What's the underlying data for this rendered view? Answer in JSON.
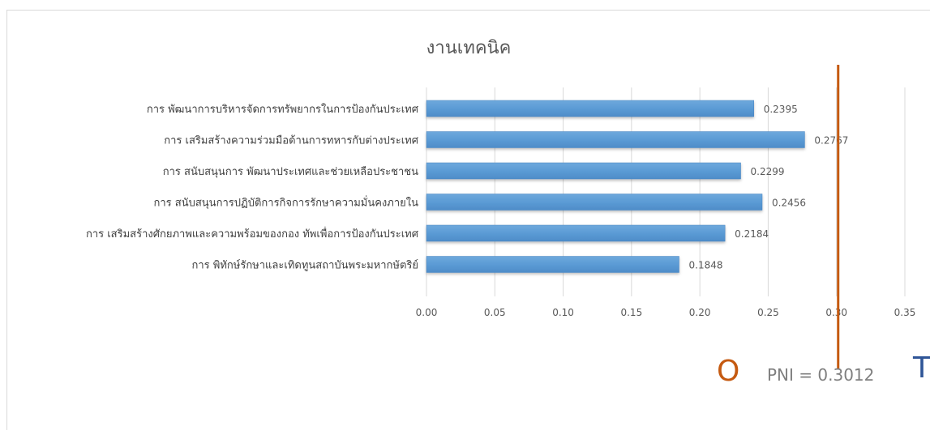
{
  "colors": {
    "bar": "#5b9bd5",
    "bar_edge": "#4a86c2",
    "gridline": "#d9d9d9",
    "threshold": "#c55a11",
    "label_o": "#c55a11",
    "label_t": "#2f5597"
  },
  "chart_data": {
    "type": "bar",
    "orientation": "horizontal",
    "title": "งานเทคนิค",
    "categories": [
      "การ พัฒนาการบริหารจัดการทรัพยากรในการป้องกันประเทศ",
      "การ เสริมสร้างความร่วมมือด้านการทหารกับต่างประเทศ",
      "การ สนับสนุนการ พัฒนาประเทศและช่วยเหลือประชาชน",
      "การ สนับสนุนการปฏิบัติการกิจการรักษาความมั่นคงภายใน",
      "การ เสริมสร้างศักยภาพและความพร้อมของกอง ทัพเพื่อการป้องกันประเทศ",
      "การ พิทักษ์รักษาและเทิดทูนสถาบันพระมหากษัตริย์"
    ],
    "values": [
      0.2395,
      0.2767,
      0.2299,
      0.2456,
      0.2184,
      0.1848
    ],
    "value_labels": [
      "0.2395",
      "0.2767",
      "0.2299",
      "0.2456",
      "0.2184",
      "0.1848"
    ],
    "xlim": [
      0,
      0.35
    ],
    "xticks": [
      "0.00",
      "0.05",
      "0.10",
      "0.15",
      "0.20",
      "0.25",
      "0.30",
      "0.35"
    ],
    "grid": true,
    "threshold": {
      "value": 0.3012,
      "label": "PNI = 0.3012",
      "marker_left": "O",
      "marker_right": "T"
    }
  }
}
